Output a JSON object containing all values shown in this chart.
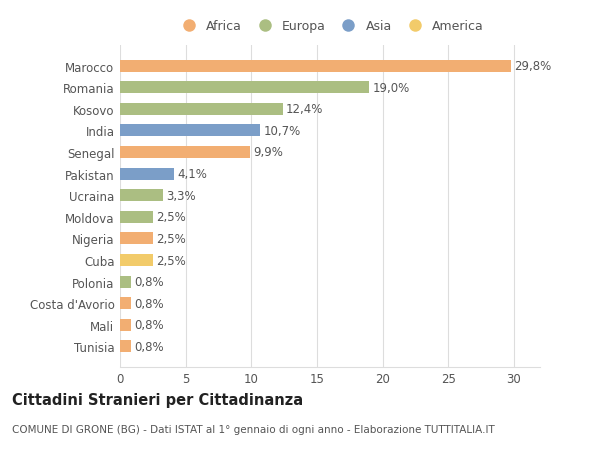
{
  "categories": [
    "Tunisia",
    "Mali",
    "Costa d'Avorio",
    "Polonia",
    "Cuba",
    "Nigeria",
    "Moldova",
    "Ucraina",
    "Pakistan",
    "Senegal",
    "India",
    "Kosovo",
    "Romania",
    "Marocco"
  ],
  "values": [
    0.8,
    0.8,
    0.8,
    0.8,
    2.5,
    2.5,
    2.5,
    3.3,
    4.1,
    9.9,
    10.7,
    12.4,
    19.0,
    29.8
  ],
  "labels": [
    "0,8%",
    "0,8%",
    "0,8%",
    "0,8%",
    "2,5%",
    "2,5%",
    "2,5%",
    "3,3%",
    "4,1%",
    "9,9%",
    "10,7%",
    "12,4%",
    "19,0%",
    "29,8%"
  ],
  "continents": [
    "Africa",
    "Africa",
    "Africa",
    "Europa",
    "America",
    "Africa",
    "Europa",
    "Europa",
    "Asia",
    "Africa",
    "Asia",
    "Europa",
    "Europa",
    "Africa"
  ],
  "colors": {
    "Africa": "#F2AE72",
    "Europa": "#ABBE82",
    "Asia": "#7B9EC8",
    "America": "#F2CB6A"
  },
  "legend_order": [
    "Africa",
    "Europa",
    "Asia",
    "America"
  ],
  "xlim": [
    0,
    32
  ],
  "xticks": [
    0,
    5,
    10,
    15,
    20,
    25,
    30
  ],
  "title_bold": "Cittadini Stranieri per Cittadinanza",
  "subtitle": "COMUNE DI GRONE (BG) - Dati ISTAT al 1° gennaio di ogni anno - Elaborazione TUTTITALIA.IT",
  "bg_color": "#FFFFFF",
  "grid_color": "#DDDDDD",
  "bar_height": 0.55,
  "label_fontsize": 8.5,
  "tick_fontsize": 8.5,
  "title_fontsize": 10.5,
  "subtitle_fontsize": 7.5
}
